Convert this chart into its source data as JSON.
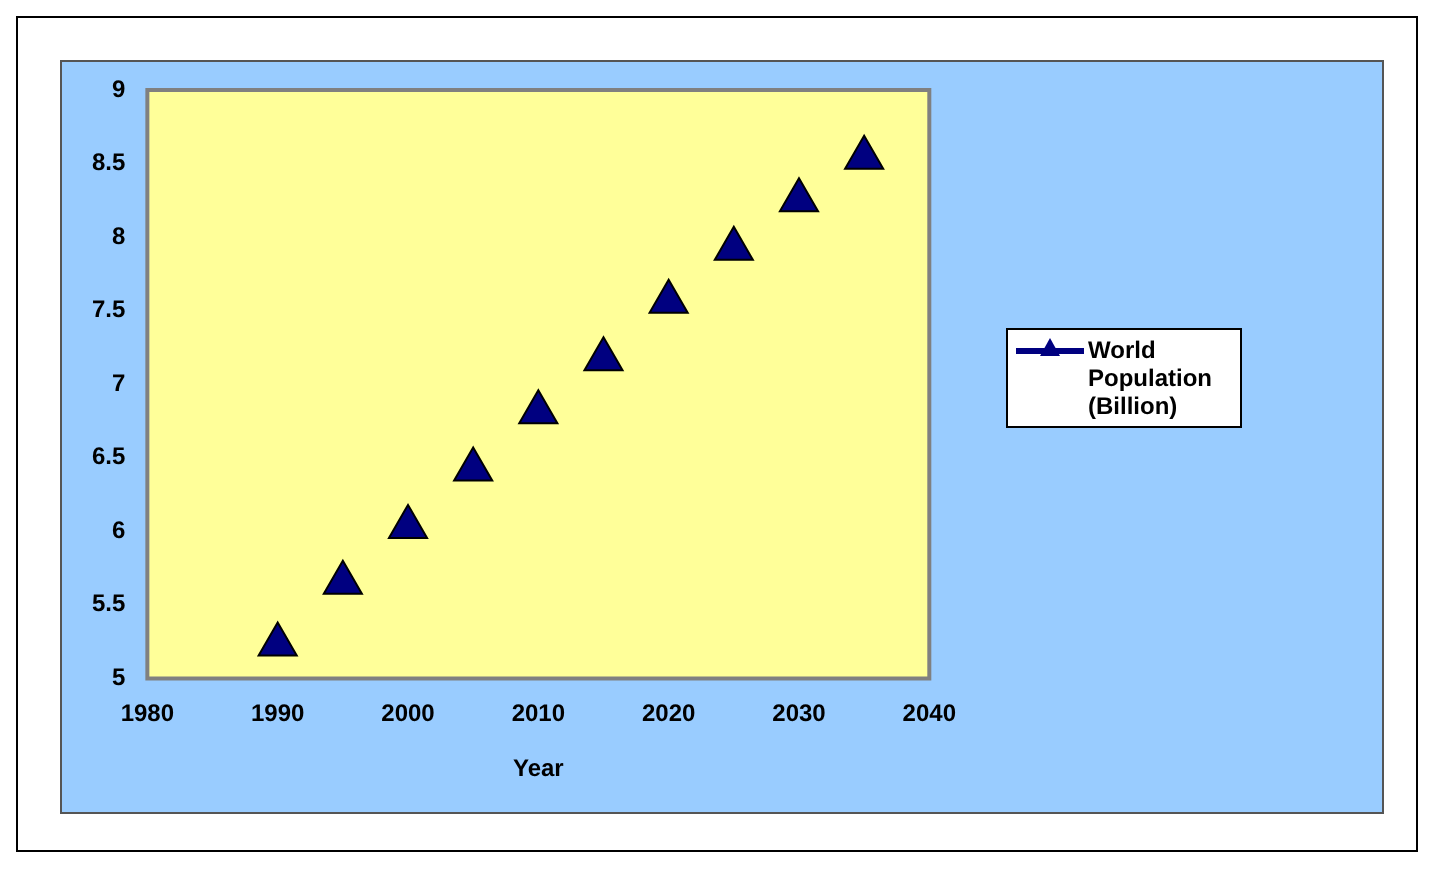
{
  "chart_data": {
    "type": "scatter",
    "xlabel": "Year",
    "x": [
      1990,
      1995,
      2000,
      2005,
      2010,
      2015,
      2020,
      2025,
      2030,
      2035
    ],
    "series": [
      {
        "name": "World Population (Billion)",
        "color": "#000080",
        "values": [
          5.23,
          5.65,
          6.03,
          6.42,
          6.81,
          7.17,
          7.56,
          7.92,
          8.25,
          8.54
        ]
      }
    ],
    "xlim": [
      1980,
      2040
    ],
    "xticks": [
      1980,
      1990,
      2000,
      2010,
      2020,
      2030,
      2040
    ],
    "ylim": [
      5,
      9
    ],
    "yticks": [
      5,
      5.5,
      6,
      6.5,
      7,
      7.5,
      8,
      8.5,
      9
    ],
    "grid": false,
    "legend": "right",
    "marker": "triangle"
  }
}
